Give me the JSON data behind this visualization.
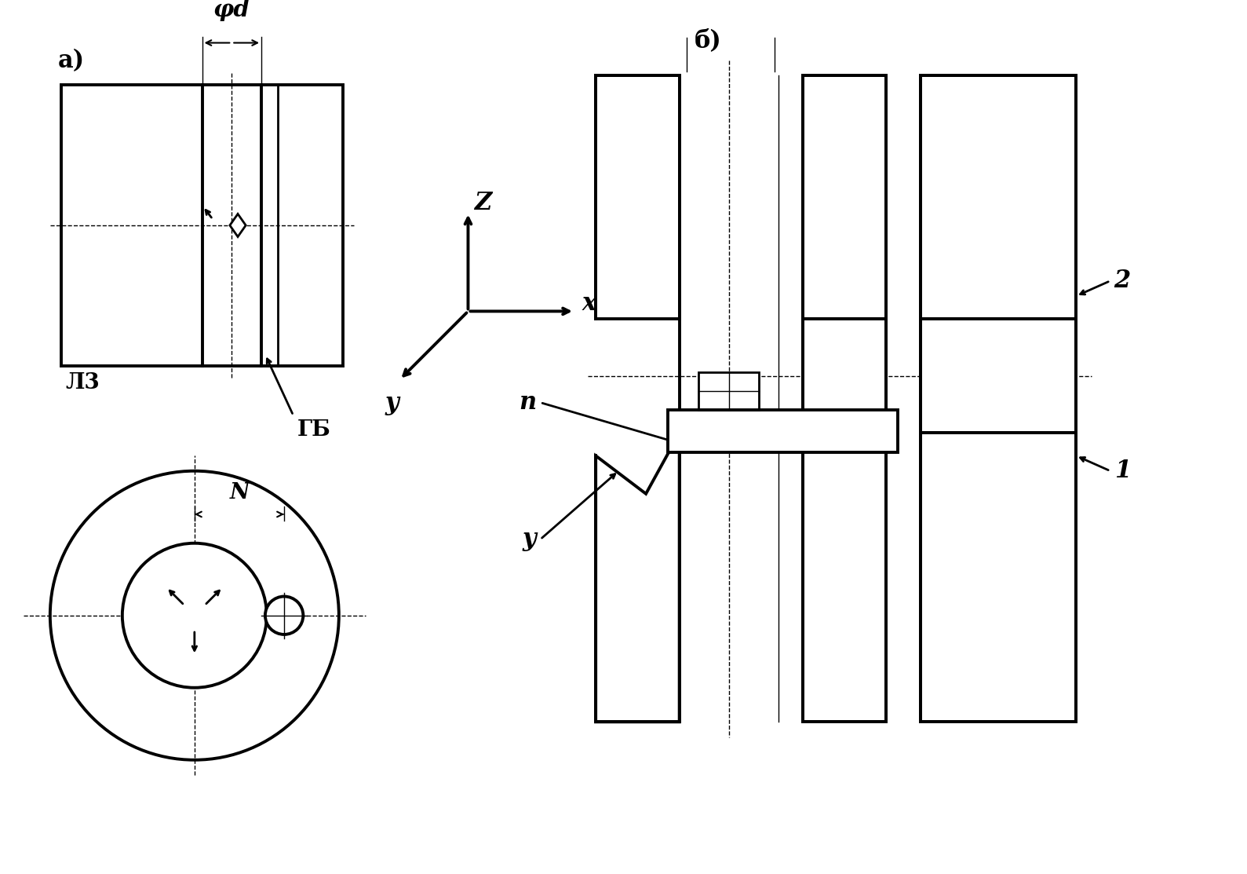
{
  "bg_color": "#ffffff",
  "line_color": "#000000",
  "label_a": "a)",
  "label_b": "б)",
  "label_phi_d": "φd",
  "label_lz": "Л3",
  "label_gb": "ГБ",
  "label_n_dim": "N",
  "label_z": "Z",
  "label_x": "x",
  "label_y": "y",
  "label_p": "п",
  "label_u": "у",
  "label_1": "1",
  "label_2": "2"
}
